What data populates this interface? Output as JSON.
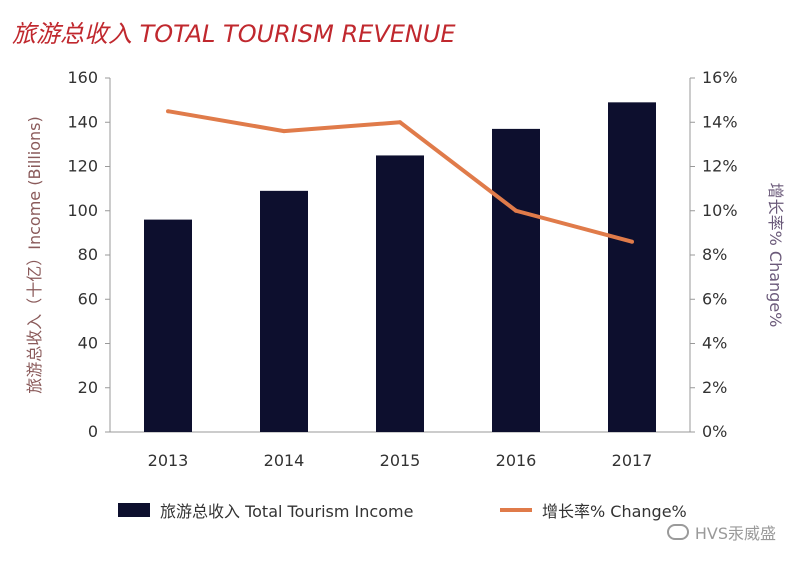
{
  "title": "旅游总收入 TOTAL TOURISM REVENUE",
  "watermark": "HVS汞威盛",
  "colors": {
    "bar": "#0d0f2e",
    "line": "#e07b4a",
    "title": "#c0282e",
    "axis_text": "#333333",
    "y_left_label": "#8a5a5a",
    "y_right_label": "#6b5a7a"
  },
  "chart_data": {
    "type": "bar",
    "categories": [
      "2013",
      "2014",
      "2015",
      "2016",
      "2017"
    ],
    "series": [
      {
        "name": "旅游总收入 Total Tourism Income",
        "type": "bar",
        "axis": "left",
        "values": [
          96,
          109,
          125,
          137,
          149
        ]
      },
      {
        "name": "增长率% Change%",
        "type": "line",
        "axis": "right",
        "values": [
          14.5,
          13.6,
          14.0,
          10.0,
          8.6
        ]
      }
    ],
    "ylabel": "旅游总收入（十亿）Income (Billions)",
    "ylabel_right": "增长率% Change%",
    "ylim": [
      0,
      160
    ],
    "ylim_right": [
      0,
      16
    ],
    "yticks": [
      "0",
      "20",
      "40",
      "60",
      "80",
      "100",
      "120",
      "140",
      "160"
    ],
    "yticks_right": [
      "0%",
      "2%",
      "4%",
      "6%",
      "8%",
      "10%",
      "12%",
      "14%",
      "16%"
    ],
    "grid": false,
    "legend_position": "bottom"
  }
}
